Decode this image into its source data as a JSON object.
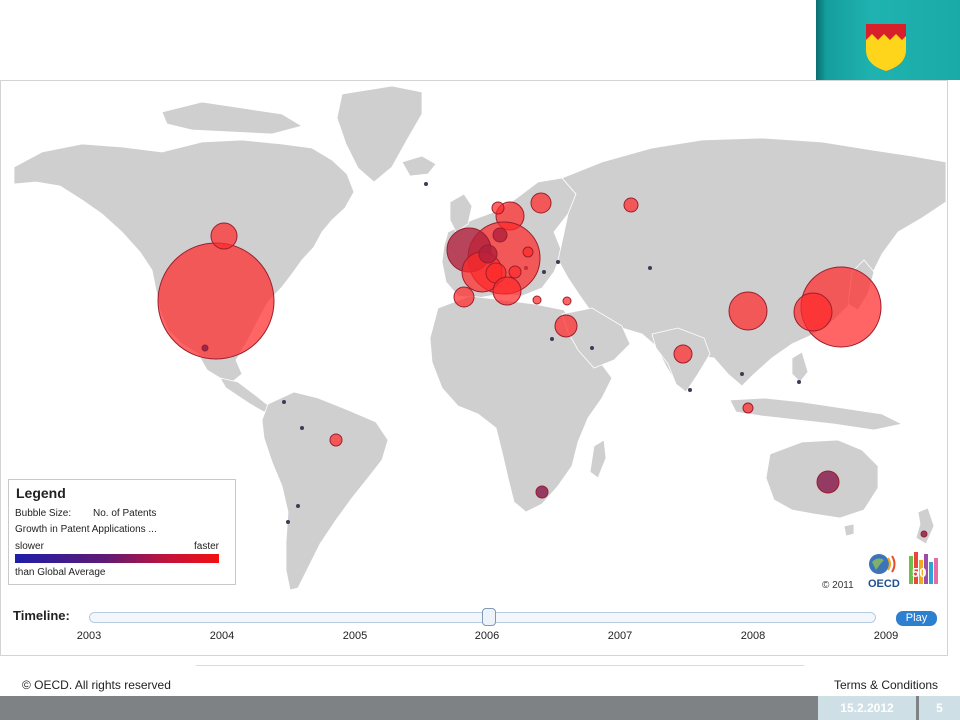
{
  "legend": {
    "title": "Legend",
    "bubble_size_label": "Bubble Size:",
    "bubble_size_value": "No. of Patents",
    "growth_label": "Growth in Patent Applications ...",
    "slower_label": "slower",
    "faster_label": "faster",
    "than_label": "than Global Average",
    "gradient_colors": [
      "#1d1ea8",
      "#611a73",
      "#c2133a",
      "#f21010"
    ]
  },
  "map": {
    "copyright": "© 2011",
    "logo_text": "OECD",
    "logo_number": "50",
    "land_color": "#cfcfcf",
    "bubble_color": "#ff2a2a"
  },
  "timeline": {
    "label": "Timeline:",
    "years": [
      "2003",
      "2004",
      "2005",
      "2006",
      "2007",
      "2008",
      "2009"
    ],
    "selected_year": "2006",
    "play_label": "Play"
  },
  "footer": {
    "copyright": "© OECD. All rights reserved",
    "terms": "Terms & Conditions"
  },
  "slide": {
    "date": "15.2.2012",
    "page_number": "5",
    "accent_color": "#1aa9a7"
  }
}
